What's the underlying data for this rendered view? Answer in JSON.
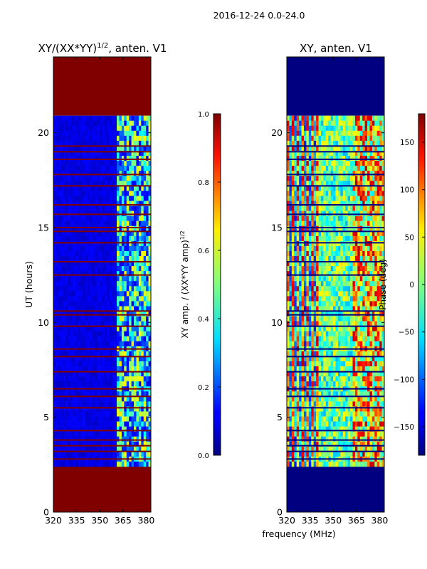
{
  "suptitle": "2016-12-24 0.0-24.0",
  "shared_xlabel": "frequency (MHz)",
  "chart_data": [
    {
      "type": "heatmap",
      "title_main": "XY/(XX*YY)",
      "title_sup": "1/2",
      "title_tail": ", anten. V1",
      "ylabel": "UT (hours)",
      "xlim": [
        320,
        383
      ],
      "ylim": [
        0,
        24
      ],
      "x_ticks": [
        320,
        335,
        350,
        365,
        380
      ],
      "y_ticks": [
        0,
        5,
        10,
        15,
        20
      ],
      "valid_time_range": [
        2.4,
        20.9
      ],
      "colormap": "jet",
      "fill_value": 1.0,
      "background_value": 0.05,
      "colorbar": {
        "label_main": "XY amp. / (XX*YY amp)",
        "label_sup": "1/2",
        "ticks": [
          "0.0",
          "0.2",
          "0.4",
          "0.6",
          "0.8",
          "1.0"
        ],
        "range": [
          0.0,
          1.0
        ]
      }
    },
    {
      "type": "heatmap",
      "title": "XY, anten. V1",
      "xlim": [
        320,
        383
      ],
      "ylim": [
        0,
        24
      ],
      "x_ticks": [
        320,
        335,
        350,
        365,
        380
      ],
      "y_ticks": [
        0,
        5,
        10,
        15,
        20
      ],
      "valid_time_range": [
        2.4,
        20.9
      ],
      "colormap": "jet",
      "fill_value": -180,
      "colorbar": {
        "label": "Phase (deg)",
        "ticks": [
          "150",
          "100",
          "50",
          "0",
          "−50",
          "−100",
          "−150"
        ],
        "tick_values": [
          150,
          100,
          50,
          0,
          -50,
          -100,
          -150
        ],
        "range": [
          -180,
          180
        ]
      }
    }
  ],
  "colors": {
    "jet_dark_red": "#800000",
    "jet_dark_blue": "#000080"
  }
}
